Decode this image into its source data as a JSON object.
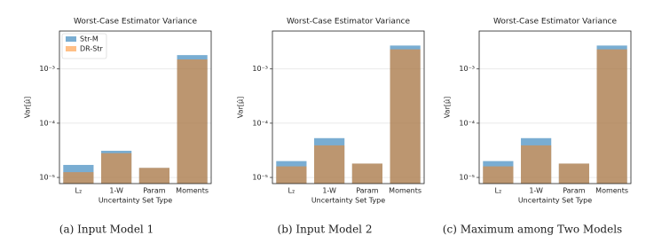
{
  "chart_data": [
    {
      "type": "bar",
      "title": "Worst-Case Estimator Variance",
      "xlabel": "Uncertainty Set Type",
      "ylabel": "Var[μ̂]",
      "caption": "(a) Input Model 1",
      "categories": [
        "L₂",
        "1-W",
        "Param",
        "Moments"
      ],
      "series": [
        {
          "name": "Str-M",
          "color": "#1f77b4",
          "values": [
            1.7e-05,
            3.1e-05,
            1.5e-05,
            0.0018
          ]
        },
        {
          "name": "DR-Str",
          "color": "#ff7f0e",
          "values": [
            1.25e-05,
            2.8e-05,
            1.5e-05,
            0.0015
          ]
        }
      ],
      "log_y": true,
      "grid": true,
      "legend": "upper left",
      "ylim": [
        7.7e-06,
        0.005
      ],
      "yticks": [
        {
          "value": 1e-05,
          "label": "10⁻⁵"
        },
        {
          "value": 0.0001,
          "label": "10⁻⁴"
        },
        {
          "value": 0.001,
          "label": "10⁻³"
        }
      ]
    },
    {
      "type": "bar",
      "title": "Worst-Case Estimator Variance",
      "xlabel": "Uncertainty Set Type",
      "ylabel": "Var[μ̂]",
      "caption": "(b) Input Model 2",
      "categories": [
        "L₂",
        "1-W",
        "Param",
        "Moments"
      ],
      "series": [
        {
          "color": "#1f77b4",
          "values": [
            2e-05,
            5.3e-05,
            1.8e-05,
            0.0027
          ]
        },
        {
          "color": "#ff7f0e",
          "values": [
            1.6e-05,
            3.9e-05,
            1.8e-05,
            0.0023
          ]
        }
      ],
      "log_y": true,
      "grid": true,
      "ylim": [
        7.7e-06,
        0.005
      ],
      "yticks": [
        {
          "value": 1e-05,
          "label": "10⁻⁵"
        },
        {
          "value": 0.0001,
          "label": "10⁻⁴"
        },
        {
          "value": 0.001,
          "label": "10⁻³"
        }
      ]
    },
    {
      "type": "bar",
      "title": "Worst-Case Estimator Variance",
      "xlabel": "Uncertainty Set Type",
      "ylabel": "Var[μ̂]",
      "caption": "(c) Maximum among Two Models",
      "categories": [
        "L₂",
        "1-W",
        "Param",
        "Moments"
      ],
      "series": [
        {
          "color": "#1f77b4",
          "values": [
            2e-05,
            5.3e-05,
            1.8e-05,
            0.0027
          ]
        },
        {
          "color": "#ff7f0e",
          "values": [
            1.6e-05,
            3.9e-05,
            1.8e-05,
            0.0023
          ]
        }
      ],
      "log_y": true,
      "grid": true,
      "ylim": [
        7.7e-06,
        0.005
      ],
      "yticks": [
        {
          "value": 1e-05,
          "label": "10⁻⁵"
        },
        {
          "value": 0.0001,
          "label": "10⁻⁴"
        },
        {
          "value": 0.001,
          "label": "10⁻³"
        }
      ]
    }
  ]
}
